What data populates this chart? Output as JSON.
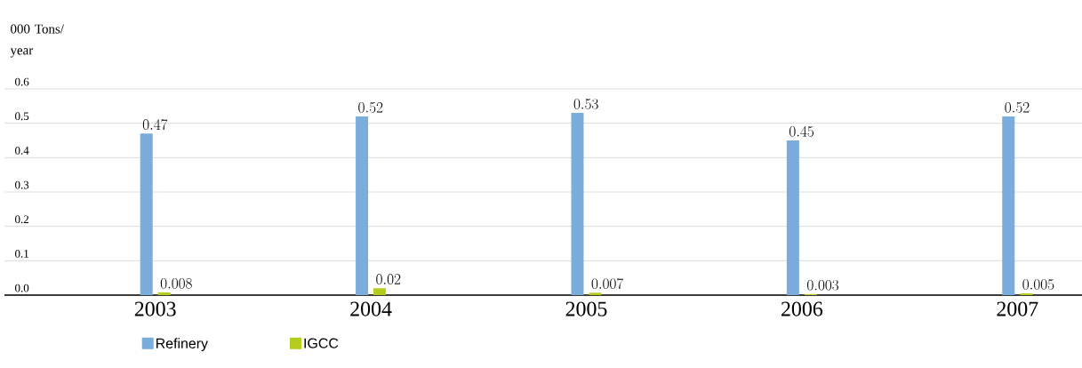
{
  "chart_data": {
    "type": "bar",
    "ylabel": "000 Tons/ year",
    "categories": [
      "2003",
      "2004",
      "2005",
      "2006",
      "2007"
    ],
    "series": [
      {
        "name": "Refinery",
        "color": "#7aacdc",
        "values": [
          0.47,
          0.52,
          0.53,
          0.45,
          0.52
        ]
      },
      {
        "name": "IGCC",
        "color": "#b4cc1c",
        "values": [
          0.008,
          0.02,
          0.007,
          0.003,
          0.005
        ]
      }
    ],
    "ylim": [
      0,
      0.6
    ],
    "yticks": [
      {
        "value": 0,
        "label": "0.0"
      },
      0.1,
      0.2,
      0.3,
      0.4,
      0.5,
      0.6
    ],
    "grid": "y",
    "legend": "bottom left",
    "data_labels": true
  }
}
